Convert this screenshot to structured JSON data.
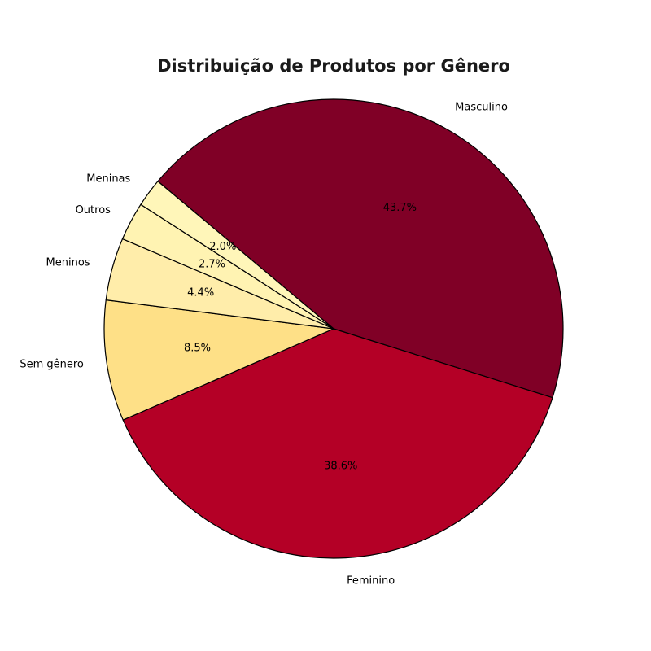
{
  "chart_data": {
    "type": "pie",
    "title": "Distribuição de Produtos por Gênero",
    "slices": [
      {
        "label": "Masculino",
        "value": 43.7,
        "pct_label": "43.7%",
        "color": "#800026"
      },
      {
        "label": "Feminino",
        "value": 38.6,
        "pct_label": "38.6%",
        "color": "#b40026"
      },
      {
        "label": "Sem gênero",
        "value": 8.5,
        "pct_label": "8.5%",
        "color": "#fee087"
      },
      {
        "label": "Meninos",
        "value": 4.4,
        "pct_label": "4.4%",
        "color": "#ffedaa"
      },
      {
        "label": "Outros",
        "value": 2.7,
        "pct_label": "2.7%",
        "color": "#fff3b2"
      },
      {
        "label": "Meninas",
        "value": 2.0,
        "pct_label": "2.0%",
        "color": "#fff6b9"
      }
    ],
    "start_angle_deg": 140,
    "direction": "clockwise",
    "edge_color": "#000000",
    "legend": "none"
  }
}
